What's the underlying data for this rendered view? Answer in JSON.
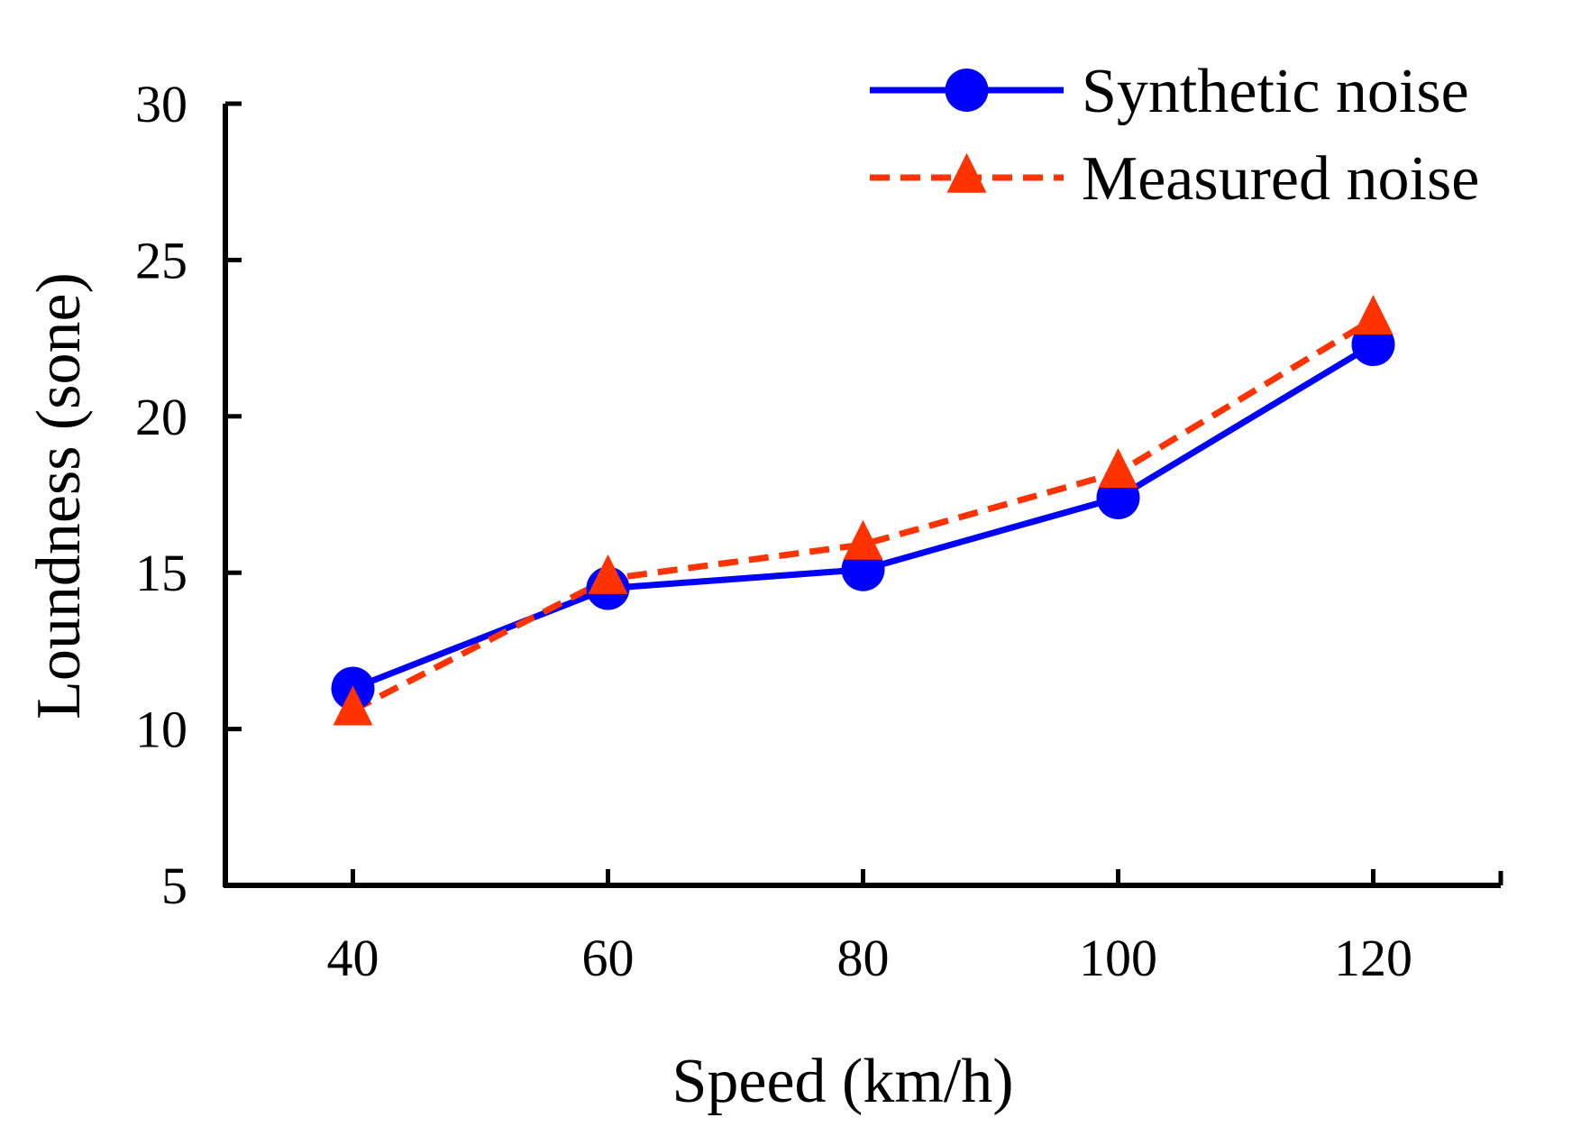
{
  "chart_data": {
    "type": "line",
    "title": "",
    "xlabel": "Speed (km/h)",
    "ylabel": "Loundness (sone)",
    "x": [
      40,
      60,
      80,
      100,
      120
    ],
    "xlim": [
      30,
      130
    ],
    "ylim": [
      5,
      30
    ],
    "xticks": [
      40,
      60,
      80,
      100,
      120
    ],
    "yticks": [
      5,
      10,
      15,
      20,
      25,
      30
    ],
    "grid": false,
    "legend_position": "top-right",
    "series": [
      {
        "name": "Synthetic noise",
        "values": [
          11.3,
          14.5,
          15.1,
          17.4,
          22.3
        ],
        "color": "#0000ff",
        "line_style": "solid",
        "marker": "circle"
      },
      {
        "name": "Measured noise",
        "values": [
          10.6,
          14.8,
          15.9,
          18.2,
          23.1
        ],
        "color": "#ff3300",
        "line_style": "dashed",
        "marker": "triangle"
      }
    ]
  }
}
